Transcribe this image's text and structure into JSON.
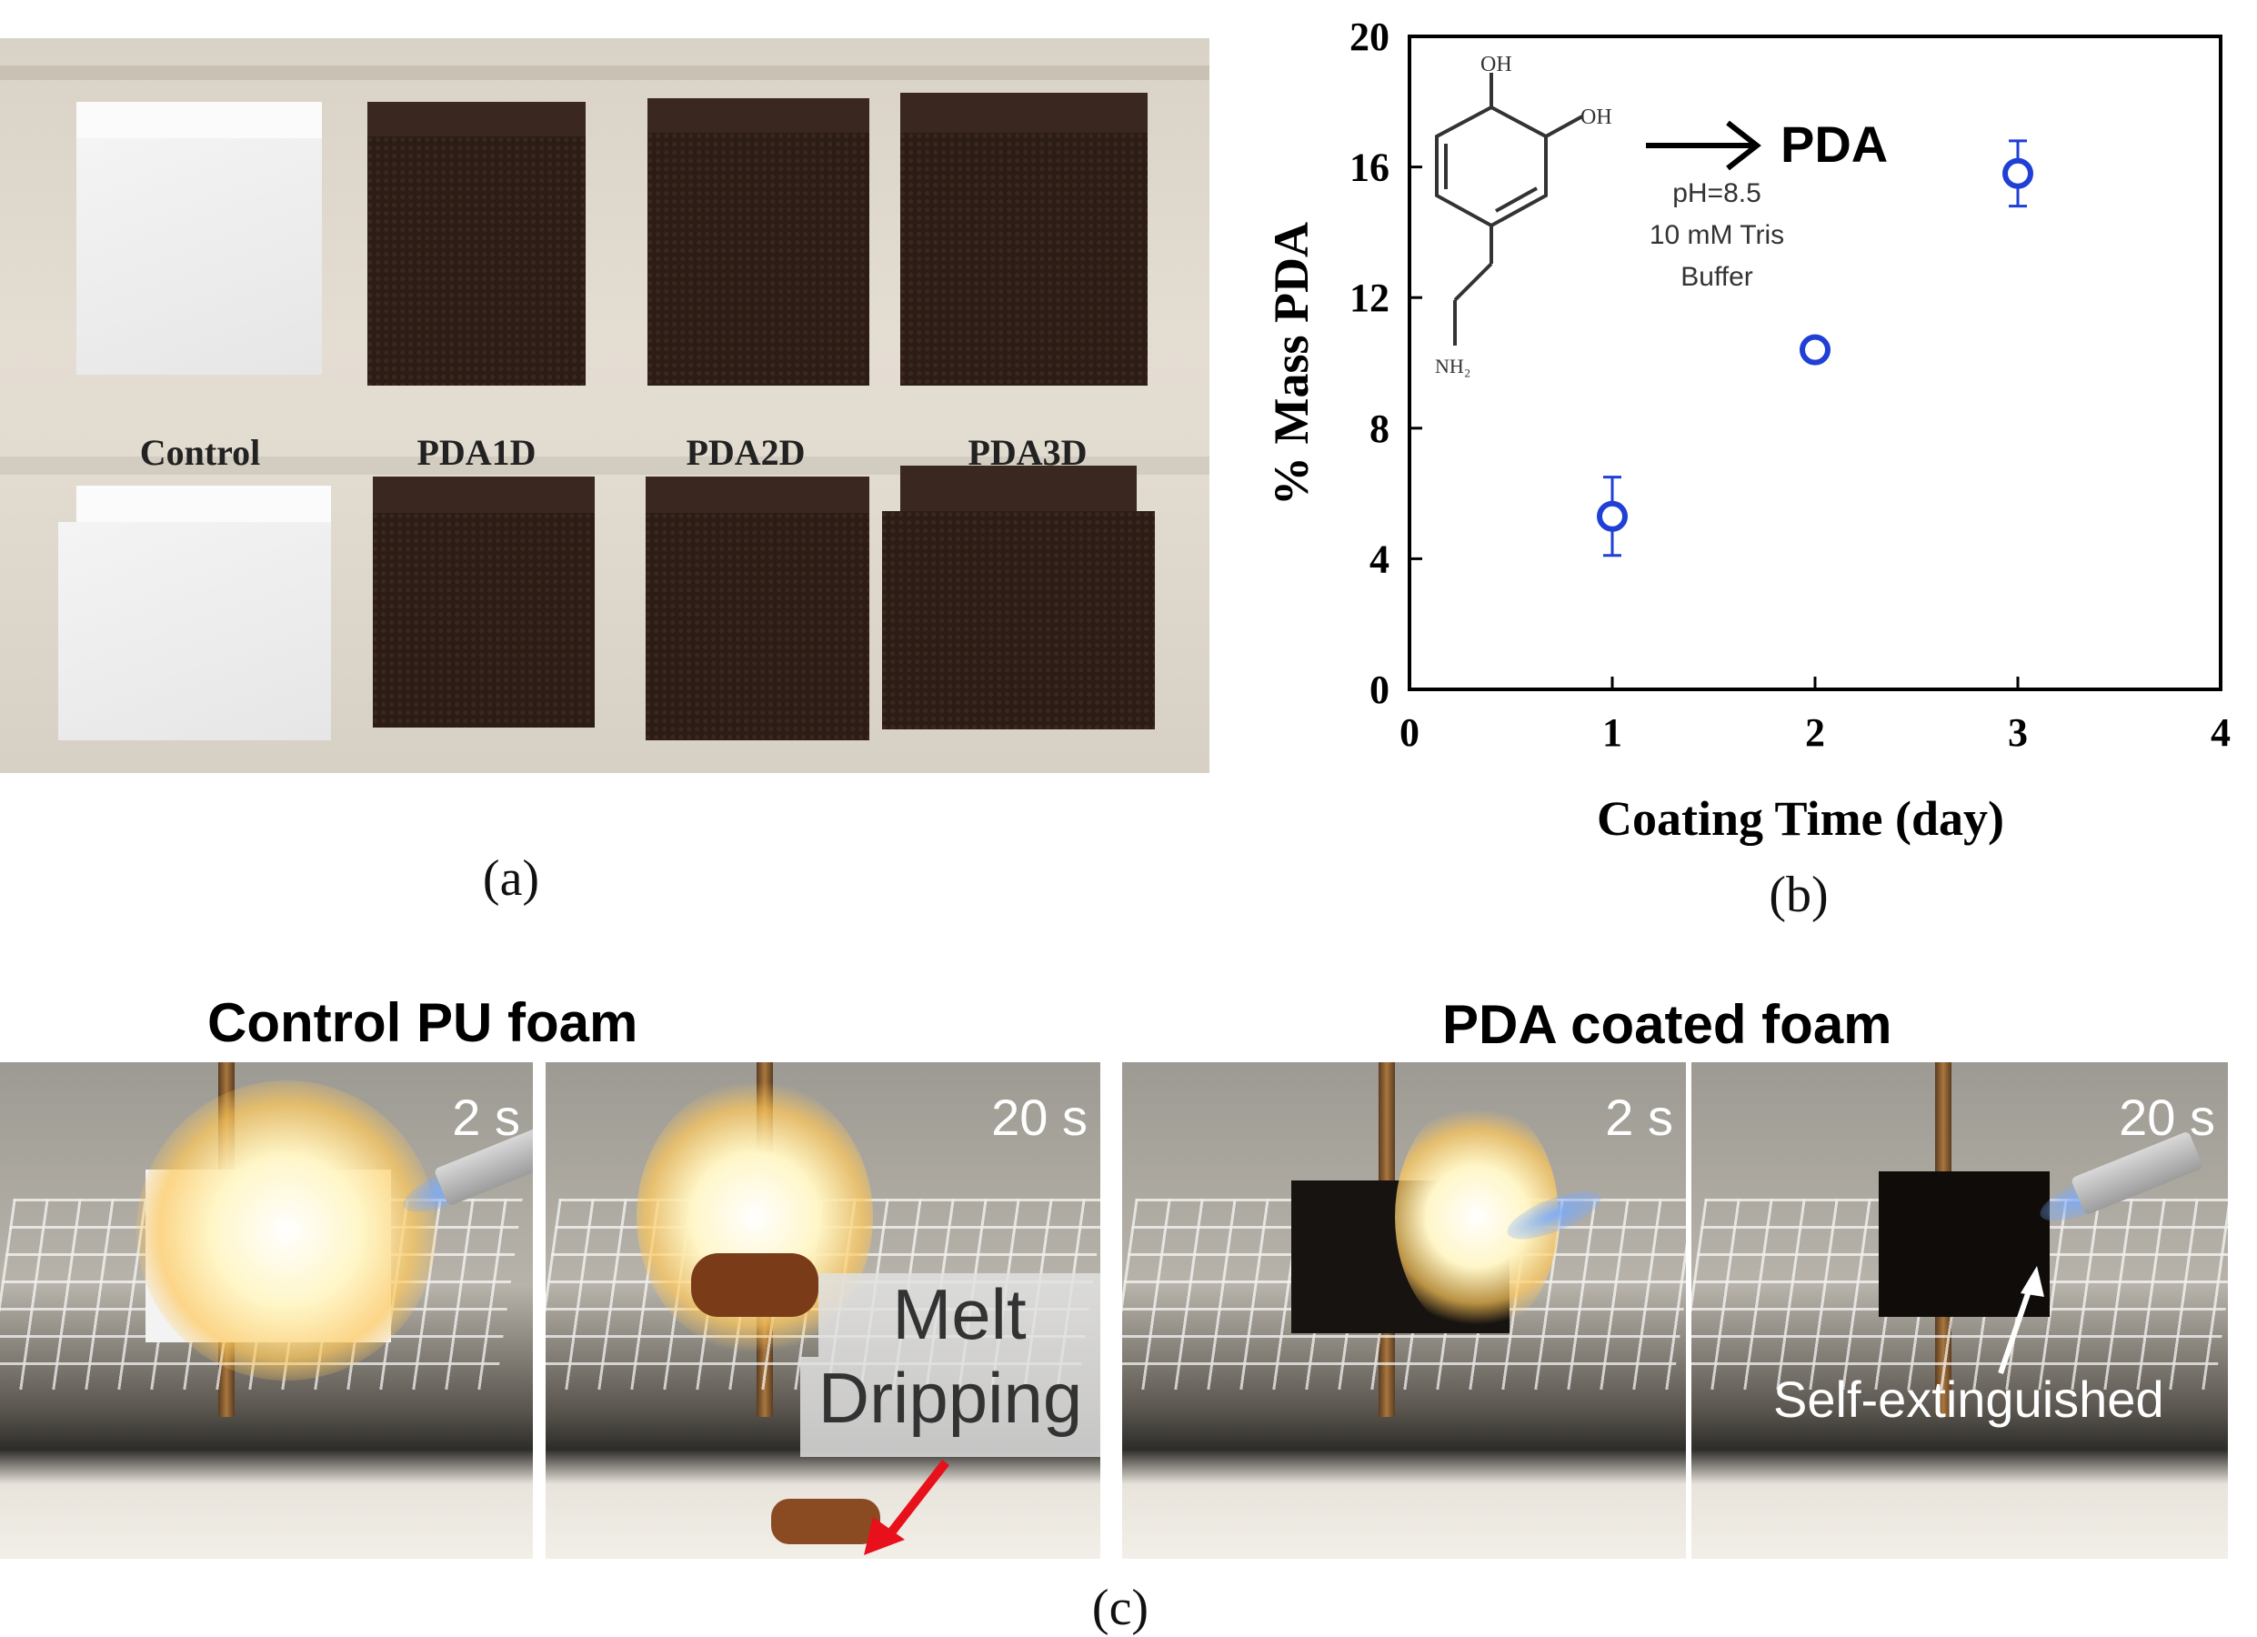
{
  "panel_a": {
    "labels": [
      "Control",
      "PDA1D",
      "PDA2D",
      "PDA3D"
    ],
    "caption": "(a)"
  },
  "panel_b": {
    "caption": "(b)",
    "inset": {
      "oh1": "OH",
      "oh2": "OH",
      "nh2": "NH₂",
      "product": "PDA",
      "condition_1": "pH=8.5",
      "condition_2": "10 mM Tris",
      "condition_3": "Buffer"
    }
  },
  "chart_data": {
    "type": "scatter",
    "xlabel": "Coating Time (day)",
    "ylabel": "% Mass PDA",
    "xlim": [
      0,
      4
    ],
    "ylim": [
      0,
      20
    ],
    "xticks": [
      0,
      1,
      2,
      3,
      4
    ],
    "yticks": [
      0,
      4,
      8,
      12,
      16,
      20
    ],
    "series": [
      {
        "x": [
          1,
          2,
          3
        ],
        "y": [
          5.3,
          10.4,
          15.8
        ],
        "yerr": [
          1.2,
          0.3,
          1.0
        ],
        "color": "#1f3fd6"
      }
    ],
    "grid": false
  },
  "panel_c": {
    "caption": "(c)",
    "title_left": "Control PU foam",
    "title_right": "PDA coated foam",
    "frames": [
      {
        "time": "2 s"
      },
      {
        "time": "20 s"
      },
      {
        "time": "2 s"
      },
      {
        "time": "20 s"
      }
    ],
    "melt_line1": "Melt",
    "melt_line2": "Dripping",
    "self_ext": "Self-extinguished",
    "arrow_color": "#e8101a"
  }
}
